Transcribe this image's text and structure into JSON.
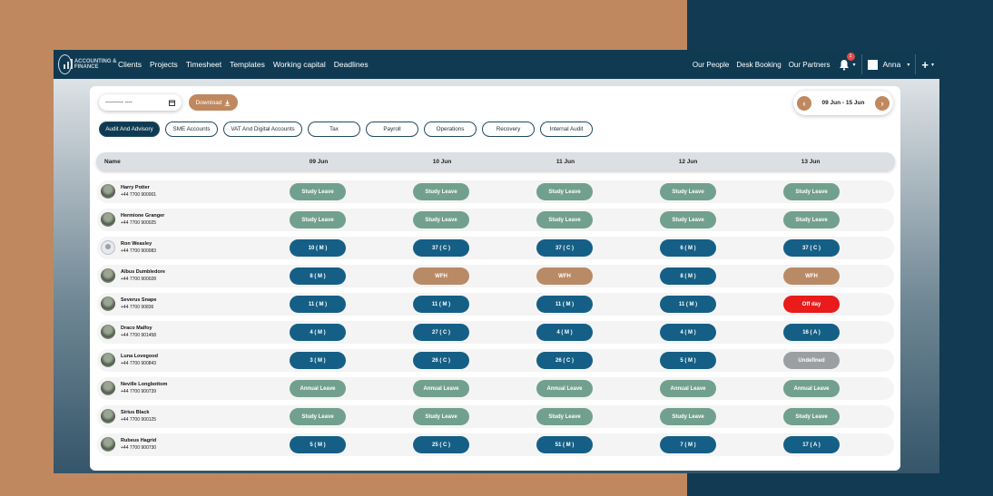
{
  "app": {
    "logo_text": "Accounting & Finance",
    "nav": [
      "Clients",
      "Projects",
      "Timesheet",
      "Templates",
      "Working capital",
      "Deadlines"
    ],
    "right_links": [
      "Our People",
      "Desk Booking",
      "Our Partners"
    ],
    "notifications": "1",
    "user": "Anna"
  },
  "toolbar": {
    "date_placeholder": "---------- ----",
    "download_label": "Download",
    "week_range": "09 Jun - 15 Jun"
  },
  "tabs": [
    "Audit And Advisory",
    "SME Accounts",
    "VAT And Digital Accounts",
    "Tax",
    "Payroll",
    "Operations",
    "Recovery",
    "Internal Audit"
  ],
  "active_tab": 0,
  "table": {
    "name_header": "Name",
    "days": [
      "09 Jun",
      "10 Jun",
      "11 Jun",
      "12 Jun",
      "13 Jun"
    ],
    "rows": [
      {
        "name": "Harry Potter",
        "phone": "+44 7700 900001",
        "cells": [
          "Study Leave",
          "Study Leave",
          "Study Leave",
          "Study Leave",
          "Study Leave"
        ]
      },
      {
        "name": "Hermione Granger",
        "phone": "+44 7700 900025",
        "cells": [
          "Study Leave",
          "Study Leave",
          "Study Leave",
          "Study Leave",
          "Study Leave"
        ]
      },
      {
        "name": "Ron Weasley",
        "phone": "+44 7700 900083",
        "cells": [
          "10 ( M )",
          "37 ( C )",
          "37 ( C )",
          "6 ( M )",
          "37 ( C )"
        ]
      },
      {
        "name": "Albus Dumbledore",
        "phone": "+44 7700 900028",
        "cells": [
          "8 ( M )",
          "WFH",
          "WFH",
          "8 ( M )",
          "WFH"
        ]
      },
      {
        "name": "Severus Snape",
        "phone": "+44 7700 90836",
        "cells": [
          "11 ( M )",
          "11 ( M )",
          "11 ( M )",
          "11 ( M )",
          "Off day"
        ]
      },
      {
        "name": "Draco Malfoy",
        "phone": "+44 7700 901458",
        "cells": [
          "4 ( M )",
          "27 ( C )",
          "4 ( M )",
          "4 ( M )",
          "16 ( A )"
        ]
      },
      {
        "name": "Luna Lovegood",
        "phone": "+44 7700 900843",
        "cells": [
          "3 ( M )",
          "26 ( C )",
          "26 ( C )",
          "5 ( M )",
          "Undefined"
        ]
      },
      {
        "name": "Neville Longbottom",
        "phone": "+44 7700 900739",
        "cells": [
          "Annual Leave",
          "Annual Leave",
          "Annual Leave",
          "Annual Leave",
          "Annual Leave"
        ]
      },
      {
        "name": "Sirius Black",
        "phone": "+44 7700 900125",
        "cells": [
          "Study Leave",
          "Study Leave",
          "Study Leave",
          "Study Leave",
          "Study Leave"
        ]
      },
      {
        "name": "Rubeus Hagrid",
        "phone": "+44 7700 900730",
        "cells": [
          "5 ( M )",
          "25 ( C )",
          "51 ( M )",
          "7 ( M )",
          "17 ( A )"
        ]
      }
    ]
  },
  "colors": {
    "navbar": "#0f3a52",
    "accent": "#c0885f",
    "study_leave": "#72a08e",
    "code_pill": "#155f86",
    "wfh": "#b98a66",
    "off_day": "#ea1b1b",
    "undefined": "#9b9fa2"
  }
}
